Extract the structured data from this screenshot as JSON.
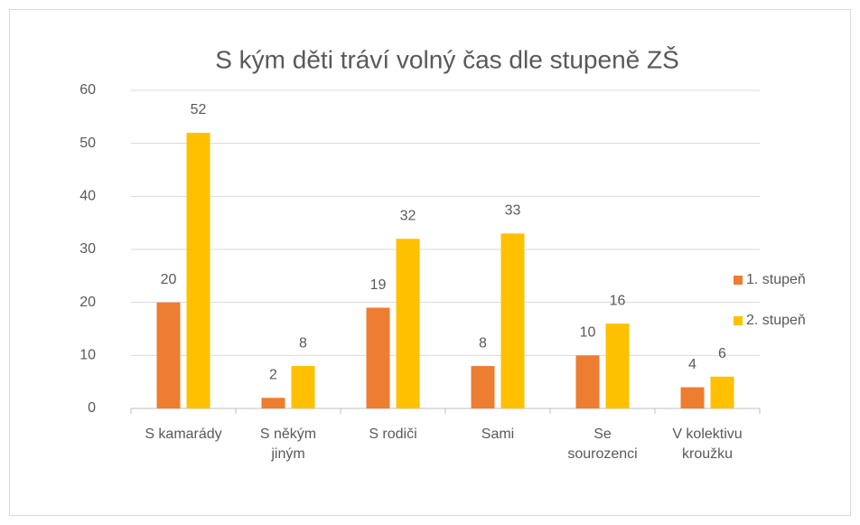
{
  "chart_data": {
    "type": "bar",
    "title": "S kým děti tráví volný čas dle stupeně ZŠ",
    "categories": [
      "S kamarády",
      "S někým jiným",
      "S rodiči",
      "Sami",
      "Se sourozenci",
      "V kolektivu kroužku"
    ],
    "series": [
      {
        "name": "1. stupeň",
        "color": "#ED7D31",
        "values": [
          20,
          2,
          19,
          8,
          10,
          4
        ]
      },
      {
        "name": "2. stupeň",
        "color": "#FFC000",
        "values": [
          52,
          8,
          32,
          33,
          16,
          6
        ]
      }
    ],
    "ylim": [
      0,
      60
    ],
    "yticks": [
      0,
      10,
      20,
      30,
      40,
      50,
      60
    ],
    "grid": true,
    "legend": "right",
    "data_labels": true
  }
}
